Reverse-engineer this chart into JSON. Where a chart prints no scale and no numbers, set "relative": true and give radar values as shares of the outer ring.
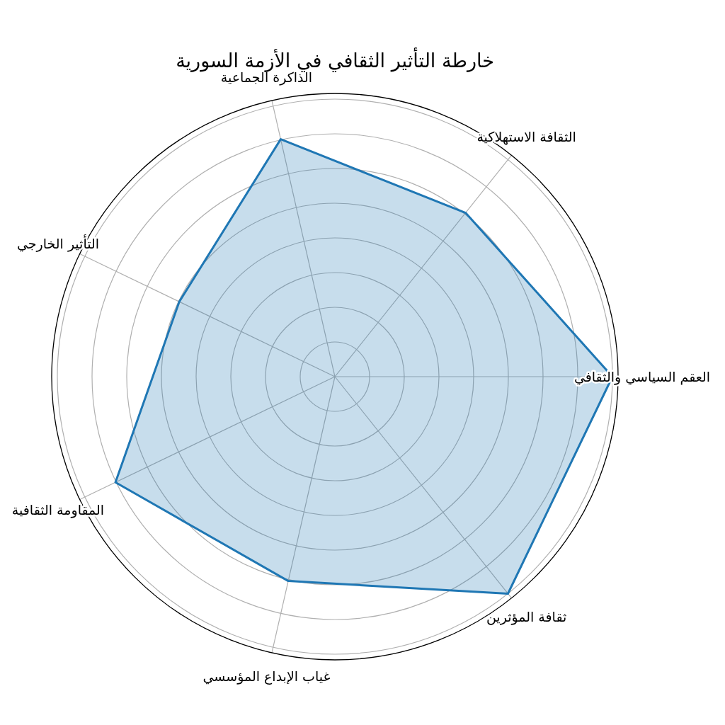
{
  "chart_data": {
    "type": "radar",
    "title": "خارطة التأثير الثقافي في الأزمة السورية",
    "categories": [
      "الثقافة الاستهلاكية",
      "العقم السياسي والثقافي",
      "ثقافة المؤثرين",
      "غياب الإبداع المؤسسي",
      "المقاومة الثقافية",
      "التأثير الخارجي",
      "الذاكرة الجماعية"
    ],
    "relative": true,
    "grid": true,
    "series": [
      {
        "color": "#1f77b4",
        "values": [
          0.74,
          0.98,
          0.98,
          0.74,
          0.86,
          0.61,
          0.86
        ]
      }
    ]
  }
}
